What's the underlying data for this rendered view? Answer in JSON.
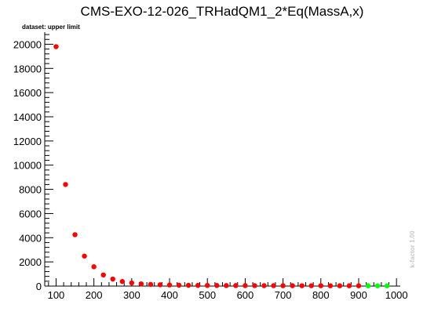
{
  "chart_data": {
    "type": "scatter",
    "title": "CMS-EXO-12-026_TRHadQM1_2*Eq(MassA,x)",
    "subtitle": "dataset: upper limit",
    "side_note": "k-factor 1.00",
    "xlabel": "",
    "ylabel": "",
    "xlim": [
      70,
      1010
    ],
    "ylim": [
      0,
      21000
    ],
    "x_ticks": [
      100,
      200,
      300,
      400,
      500,
      600,
      700,
      800,
      900,
      1000
    ],
    "y_ticks": [
      0,
      2000,
      4000,
      6000,
      8000,
      10000,
      12000,
      14000,
      16000,
      18000,
      20000
    ],
    "grid": false,
    "legend": "none",
    "colors": {
      "red_series": "#ff0000",
      "green_series": "#00ff00",
      "side_note": "#c8c8c8"
    },
    "series": [
      {
        "color": "red",
        "points": [
          [
            100,
            19800
          ],
          [
            125,
            8400
          ],
          [
            150,
            4250
          ],
          [
            175,
            2480
          ],
          [
            200,
            1600
          ],
          [
            225,
            920
          ],
          [
            250,
            580
          ],
          [
            275,
            380
          ],
          [
            300,
            260
          ],
          [
            325,
            185
          ],
          [
            350,
            140
          ],
          [
            375,
            110
          ],
          [
            400,
            90
          ],
          [
            425,
            75
          ],
          [
            450,
            65
          ],
          [
            475,
            58
          ],
          [
            500,
            52
          ],
          [
            525,
            48
          ],
          [
            550,
            45
          ],
          [
            575,
            42
          ],
          [
            600,
            40
          ],
          [
            625,
            38
          ],
          [
            650,
            36
          ],
          [
            675,
            34
          ],
          [
            700,
            33
          ],
          [
            725,
            32
          ],
          [
            750,
            31
          ],
          [
            775,
            30
          ],
          [
            800,
            29
          ],
          [
            825,
            28
          ],
          [
            850,
            27
          ],
          [
            875,
            26
          ],
          [
            900,
            25
          ]
        ]
      },
      {
        "color": "green",
        "points": [
          [
            925,
            24
          ],
          [
            950,
            23
          ],
          [
            975,
            22
          ]
        ]
      }
    ]
  }
}
